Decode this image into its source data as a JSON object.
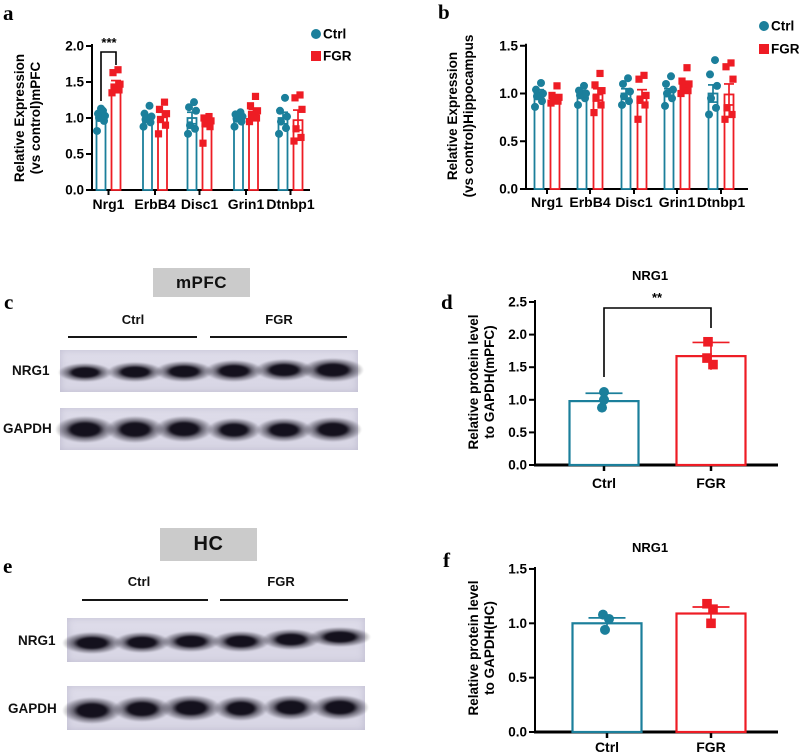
{
  "figure": {
    "panels": {
      "a": {
        "letter": "a"
      },
      "b": {
        "letter": "b"
      },
      "c": {
        "letter": "c"
      },
      "d": {
        "letter": "d"
      },
      "e": {
        "letter": "e"
      },
      "f": {
        "letter": "f"
      }
    }
  },
  "colors": {
    "ctrl": "#1b7f9b",
    "fgr": "#ee1c24",
    "axis": "#000000",
    "blot_bg": "#d7d5e4",
    "blot_bg_top": "#e1dfec",
    "band": "#14111d",
    "header_bg": "#cbcbcb"
  },
  "chart_data": [
    {
      "id": "a",
      "type": "grouped_bar_scatter",
      "title": "",
      "ylabel_lines": [
        "Relative Expression",
        "(vs control)mPFC"
      ],
      "ylim": [
        0,
        2.0
      ],
      "yticks": [
        0.0,
        0.5,
        1.0,
        1.5,
        2.0
      ],
      "categories": [
        "Nrg1",
        "ErbB4",
        "Disc1",
        "Grin1",
        "Dtnbp1"
      ],
      "legend": [
        "Ctrl",
        "FGR"
      ],
      "series": [
        {
          "name": "Ctrl",
          "marker": "circle",
          "means": [
            1.02,
            1.0,
            1.0,
            0.99,
            1.0
          ],
          "sems": [
            0.04,
            0.04,
            0.08,
            0.04,
            0.08
          ],
          "points": [
            [
              0.82,
              0.96,
              1.0,
              1.03,
              1.06,
              1.1,
              1.13
            ],
            [
              0.88,
              0.94,
              0.98,
              1.02,
              1.06,
              1.17
            ],
            [
              0.78,
              0.85,
              0.9,
              1.1,
              1.15,
              1.22
            ],
            [
              0.88,
              0.95,
              0.99,
              1.02,
              1.05,
              1.08
            ],
            [
              0.78,
              0.86,
              0.95,
              1.02,
              1.1,
              1.28
            ]
          ]
        },
        {
          "name": "FGR",
          "marker": "square",
          "means": [
            1.45,
            1.01,
            0.93,
            1.06,
            0.97
          ],
          "sems": [
            0.07,
            0.07,
            0.05,
            0.06,
            0.14
          ],
          "points": [
            [
              1.35,
              1.39,
              1.43,
              1.47,
              1.63,
              1.67
            ],
            [
              0.78,
              0.9,
              0.98,
              1.06,
              1.12,
              1.22
            ],
            [
              0.65,
              0.88,
              0.92,
              0.96,
              1.0,
              1.02
            ],
            [
              0.95,
              1.0,
              1.05,
              1.1,
              1.17,
              1.3
            ],
            [
              0.68,
              0.73,
              0.85,
              1.12,
              1.28,
              1.32
            ]
          ]
        }
      ],
      "significance": {
        "label": "***",
        "group": "Nrg1"
      }
    },
    {
      "id": "b",
      "type": "grouped_bar_scatter",
      "title": "",
      "ylabel_lines": [
        "Relative Expression",
        "(vs control)Hippocampus"
      ],
      "ylim": [
        0,
        1.5
      ],
      "yticks": [
        0.0,
        0.5,
        1.0,
        1.5
      ],
      "categories": [
        "Nrg1",
        "ErbB4",
        "Disc1",
        "Grin1",
        "Dtnbp1"
      ],
      "legend": [
        "Ctrl",
        "FGR"
      ],
      "series": [
        {
          "name": "Ctrl",
          "marker": "circle",
          "means": [
            1.0,
            1.0,
            1.0,
            1.01,
            1.0
          ],
          "sems": [
            0.04,
            0.03,
            0.05,
            0.04,
            0.09
          ],
          "points": [
            [
              0.86,
              0.92,
              0.97,
              1.0,
              1.04,
              1.11
            ],
            [
              0.88,
              0.95,
              0.98,
              1.0,
              1.03,
              1.08
            ],
            [
              0.88,
              0.92,
              0.97,
              1.02,
              1.1,
              1.16
            ],
            [
              0.87,
              0.95,
              1.0,
              1.04,
              1.1,
              1.18
            ],
            [
              0.78,
              0.85,
              0.95,
              1.08,
              1.2,
              1.35
            ]
          ]
        },
        {
          "name": "FGR",
          "marker": "square",
          "means": [
            0.95,
            0.99,
            0.97,
            1.08,
            0.99
          ],
          "sems": [
            0.03,
            0.06,
            0.07,
            0.04,
            0.11
          ],
          "points": [
            [
              0.9,
              0.92,
              0.94,
              0.96,
              0.98,
              1.08
            ],
            [
              0.8,
              0.88,
              0.95,
              1.03,
              1.09,
              1.21
            ],
            [
              0.73,
              0.88,
              0.93,
              0.98,
              1.15,
              1.19
            ],
            [
              1.0,
              1.03,
              1.07,
              1.1,
              1.13,
              1.27
            ],
            [
              0.73,
              0.78,
              0.85,
              1.15,
              1.28,
              1.32
            ]
          ]
        }
      ],
      "significance": null
    },
    {
      "id": "d",
      "type": "bar_scatter",
      "title": "NRG1",
      "ylabel_lines": [
        "Relative protein level",
        "to GAPDH(mPFC)"
      ],
      "ylim": [
        0,
        2.5
      ],
      "yticks": [
        0.0,
        0.5,
        1.0,
        1.5,
        2.0,
        2.5
      ],
      "categories": [
        "Ctrl",
        "FGR"
      ],
      "means": [
        0.98,
        1.67
      ],
      "sems": [
        0.12,
        0.21
      ],
      "points": [
        [
          0.88,
          1.0,
          1.12
        ],
        [
          1.54,
          1.64,
          1.89
        ]
      ],
      "significance": {
        "label": "**"
      }
    },
    {
      "id": "f",
      "type": "bar_scatter",
      "title": "NRG1",
      "ylabel_lines": [
        "Relative protein level",
        "to GAPDH(HC)"
      ],
      "ylim": [
        0,
        1.5
      ],
      "yticks": [
        0.0,
        0.5,
        1.0,
        1.5
      ],
      "categories": [
        "Ctrl",
        "FGR"
      ],
      "means": [
        1.0,
        1.09
      ],
      "sems": [
        0.05,
        0.06
      ],
      "points": [
        [
          0.94,
          1.04,
          1.08
        ],
        [
          1.0,
          1.13,
          1.18
        ]
      ],
      "significance": null
    }
  ],
  "blots": {
    "c": {
      "region": "mPFC",
      "lane_groups": [
        "Ctrl",
        "FGR"
      ],
      "rows": [
        {
          "protein": "NRG1",
          "band_heights": [
            7,
            8,
            9,
            10,
            10,
            12
          ],
          "band_widths": [
            42,
            44,
            46,
            46,
            46,
            50
          ]
        },
        {
          "protein": "GAPDH",
          "band_heights": [
            15,
            15,
            14,
            12,
            12,
            13
          ],
          "band_widths": [
            48,
            46,
            46,
            42,
            44,
            46
          ]
        }
      ]
    },
    "e": {
      "region": "HC",
      "lane_groups": [
        "Ctrl",
        "FGR"
      ],
      "rows": [
        {
          "protein": "NRG1",
          "band_heights": [
            10,
            9,
            9,
            9,
            9,
            8
          ],
          "band_widths": [
            48,
            44,
            46,
            46,
            46,
            50
          ]
        },
        {
          "protein": "GAPDH",
          "band_heights": [
            15,
            14,
            14,
            13,
            13,
            13
          ],
          "band_widths": [
            48,
            46,
            48,
            42,
            44,
            46
          ]
        }
      ]
    }
  }
}
